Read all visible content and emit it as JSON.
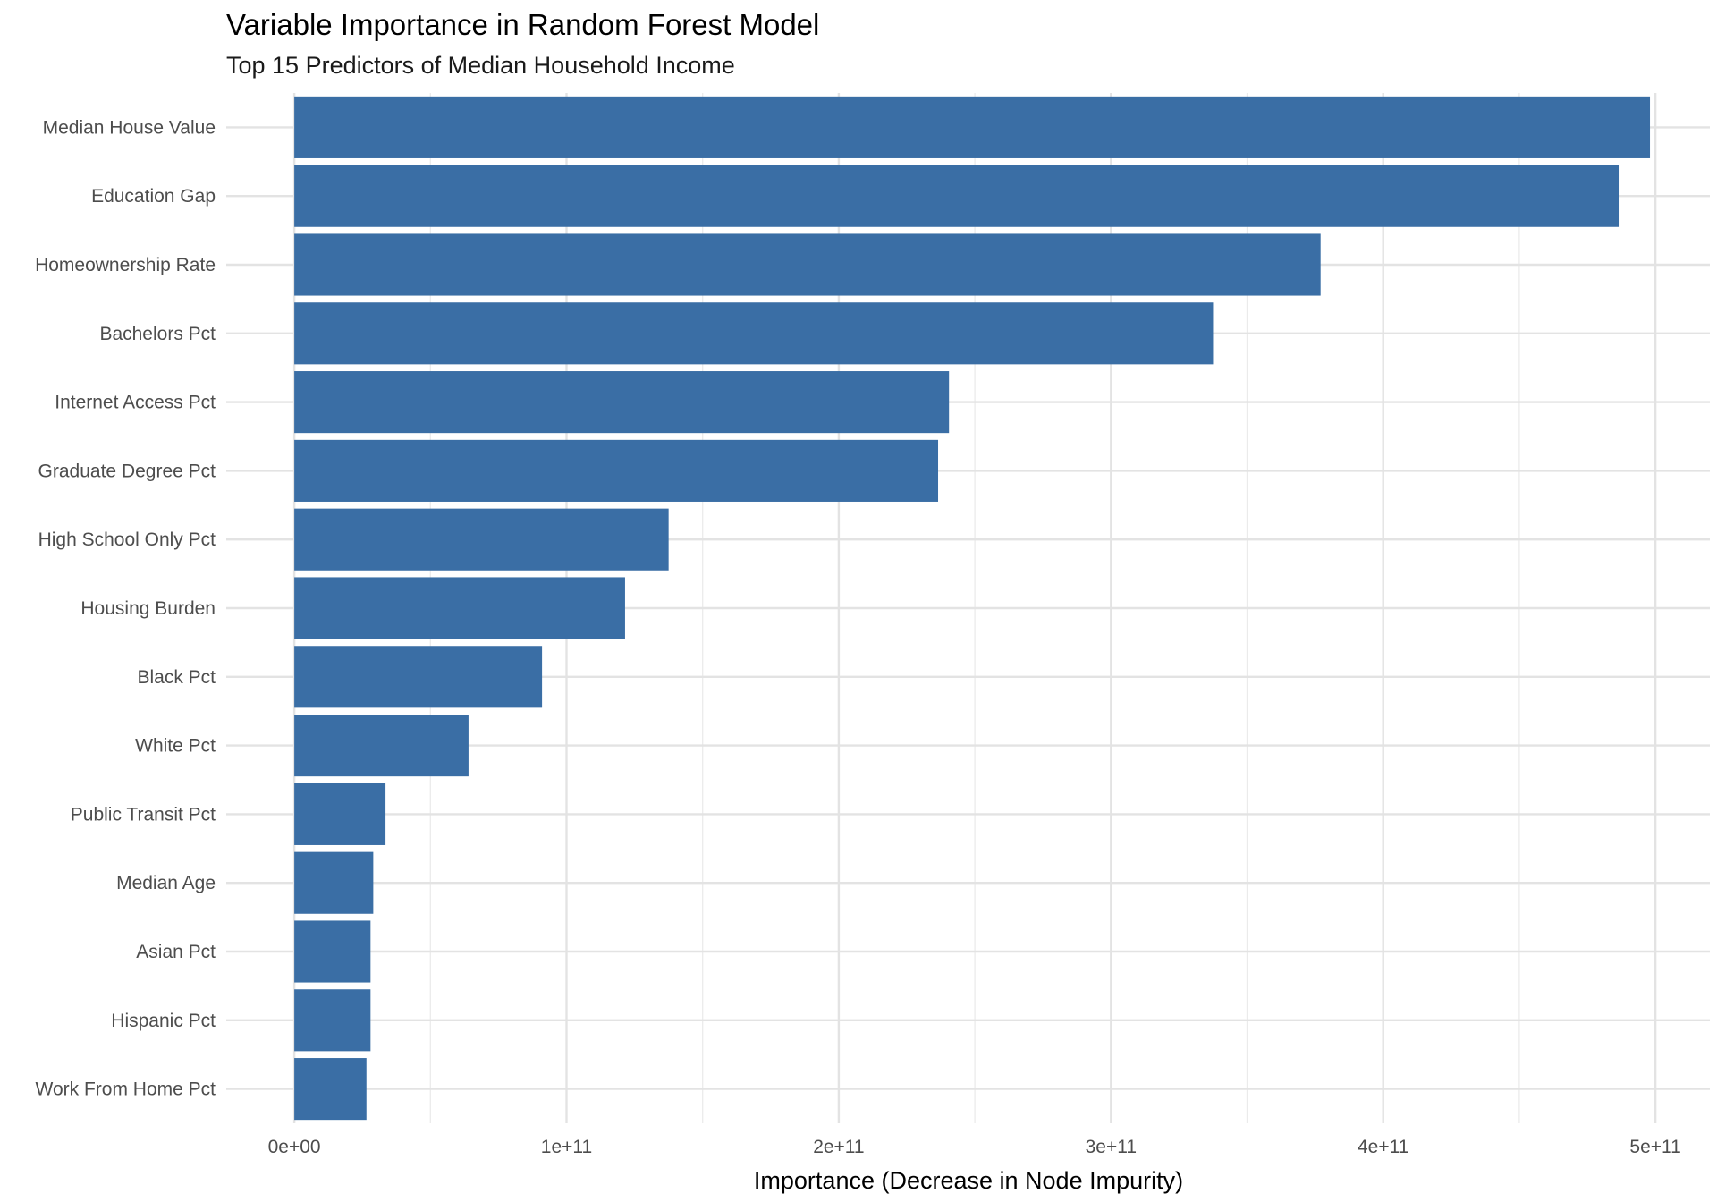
{
  "chart_data": {
    "type": "bar",
    "orientation": "horizontal",
    "title": "Variable Importance in Random Forest Model",
    "subtitle": "Top 15 Predictors of Median Household Income",
    "xlabel": "Importance (Decrease in Node Impurity)",
    "ylabel": "",
    "xlim": [
      -25000000000.0,
      520000000000.0
    ],
    "x_ticks": [
      0,
      100000000000.0,
      200000000000.0,
      300000000000.0,
      400000000000.0,
      500000000000.0
    ],
    "x_tick_labels": [
      "0e+00",
      "1e+11",
      "2e+11",
      "3e+11",
      "4e+11",
      "5e+11"
    ],
    "grid": true,
    "bar_color": "#3A6EA5",
    "categories": [
      "Median House Value",
      "Education Gap",
      "Homeownership Rate",
      "Bachelors Pct",
      "Internet Access Pct",
      "Graduate Degree Pct",
      "High School Only Pct",
      "Housing Burden",
      "Black Pct",
      "White Pct",
      "Public Transit Pct",
      "Median Age",
      "Asian Pct",
      "Hispanic Pct",
      "Work From Home Pct"
    ],
    "values": [
      498000000000.0,
      486500000000.0,
      377000000000.0,
      337500000000.0,
      240500000000.0,
      236500000000.0,
      137500000000.0,
      121500000000.0,
      91000000000.0,
      64000000000.0,
      33500000000.0,
      29000000000.0,
      28000000000.0,
      28000000000.0,
      26500000000.0
    ]
  }
}
